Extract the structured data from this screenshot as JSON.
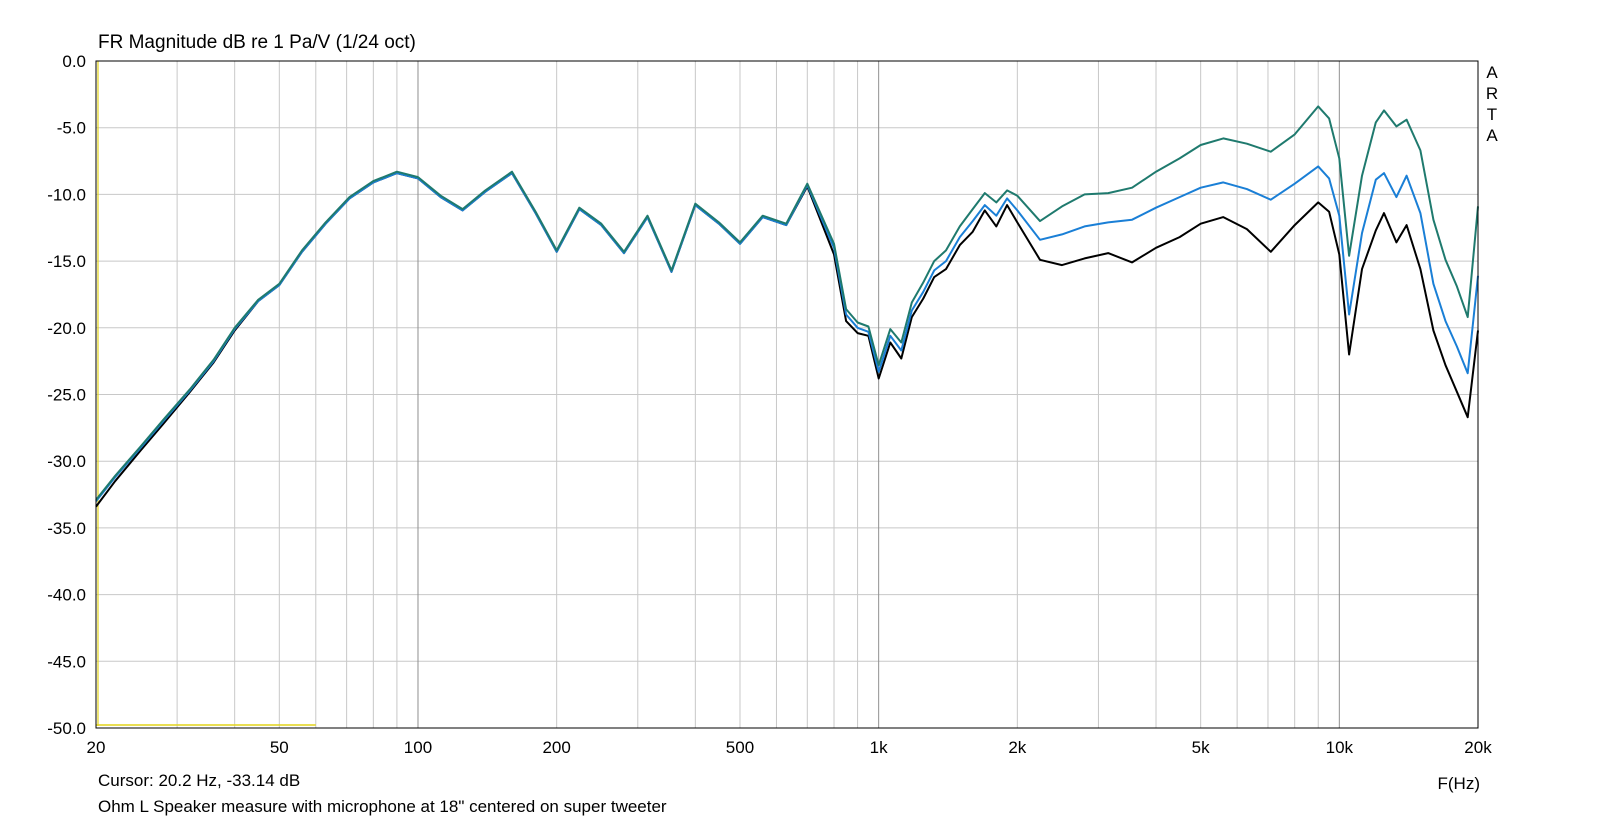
{
  "chart_data": {
    "type": "line",
    "title": "FR Magnitude dB re 1 Pa/V (1/24 oct)",
    "xlabel": "F(Hz)",
    "x_scale": "log",
    "xlim": [
      20,
      20000
    ],
    "ylim": [
      -50,
      0
    ],
    "grid": true,
    "watermark": "ARTA",
    "x_ticks": [
      {
        "value": 20,
        "label": "20"
      },
      {
        "value": 50,
        "label": "50"
      },
      {
        "value": 100,
        "label": "100"
      },
      {
        "value": 200,
        "label": "200"
      },
      {
        "value": 500,
        "label": "500"
      },
      {
        "value": 1000,
        "label": "1k"
      },
      {
        "value": 2000,
        "label": "2k"
      },
      {
        "value": 5000,
        "label": "5k"
      },
      {
        "value": 10000,
        "label": "10k"
      },
      {
        "value": 20000,
        "label": "20k"
      }
    ],
    "y_ticks": [
      {
        "value": 0,
        "label": "0.0"
      },
      {
        "value": -5,
        "label": "-5.0"
      },
      {
        "value": -10,
        "label": "-10.0"
      },
      {
        "value": -15,
        "label": "-15.0"
      },
      {
        "value": -20,
        "label": "-20.0"
      },
      {
        "value": -25,
        "label": "-25.0"
      },
      {
        "value": -30,
        "label": "-30.0"
      },
      {
        "value": -35,
        "label": "-35.0"
      },
      {
        "value": -40,
        "label": "-40.0"
      },
      {
        "value": -45,
        "label": "-45.0"
      },
      {
        "value": -50,
        "label": "-50.0"
      }
    ],
    "series": [
      {
        "color": "#000000",
        "x": [
          20,
          22,
          25,
          28,
          32,
          36,
          40,
          45,
          50,
          56,
          63,
          71,
          80,
          90,
          100,
          112,
          125,
          140,
          160,
          180,
          200,
          224,
          250,
          280,
          315,
          355,
          400,
          450,
          500,
          560,
          630,
          700,
          800,
          850,
          900,
          950,
          1000,
          1060,
          1120,
          1180,
          1250,
          1320,
          1400,
          1500,
          1600,
          1700,
          1800,
          1900,
          2000,
          2240,
          2500,
          2800,
          3150,
          3550,
          4000,
          4500,
          5000,
          5600,
          6300,
          7100,
          8000,
          9000,
          9500,
          10000,
          10500,
          11200,
          12000,
          12500,
          13300,
          14000,
          15000,
          16000,
          17000,
          18000,
          19000,
          20000
        ],
        "y": [
          -33.4,
          -31.5,
          -29.2,
          -27.2,
          -24.8,
          -22.6,
          -20.2,
          -18.0,
          -16.8,
          -14.3,
          -12.2,
          -10.3,
          -9.1,
          -8.4,
          -8.8,
          -10.2,
          -11.2,
          -9.8,
          -8.4,
          -11.4,
          -14.3,
          -11.1,
          -12.3,
          -14.4,
          -11.7,
          -15.8,
          -10.8,
          -12.2,
          -13.7,
          -11.7,
          -12.3,
          -9.4,
          -14.5,
          -19.5,
          -20.4,
          -20.6,
          -23.8,
          -21.1,
          -22.3,
          -19.2,
          -17.8,
          -16.2,
          -15.6,
          -13.8,
          -12.8,
          -11.2,
          -12.4,
          -10.8,
          -12.1,
          -14.9,
          -15.3,
          -14.8,
          -14.4,
          -15.1,
          -14.0,
          -13.2,
          -12.2,
          -11.7,
          -12.6,
          -14.3,
          -12.3,
          -10.6,
          -11.3,
          -14.5,
          -22.0,
          -15.6,
          -12.7,
          -11.4,
          -13.6,
          -12.3,
          -15.6,
          -20.2,
          -22.8,
          -24.8,
          -26.7,
          -20.2
        ]
      },
      {
        "color": "#1a7fd6",
        "x": [
          20,
          22,
          25,
          28,
          32,
          36,
          40,
          45,
          50,
          56,
          63,
          71,
          80,
          90,
          100,
          112,
          125,
          140,
          160,
          180,
          200,
          224,
          250,
          280,
          315,
          355,
          400,
          450,
          500,
          560,
          630,
          700,
          800,
          850,
          900,
          950,
          1000,
          1060,
          1120,
          1180,
          1250,
          1320,
          1400,
          1500,
          1600,
          1700,
          1800,
          1900,
          2000,
          2240,
          2500,
          2800,
          3150,
          3550,
          4000,
          4500,
          5000,
          5600,
          6300,
          7100,
          8000,
          9000,
          9500,
          10000,
          10500,
          11200,
          12000,
          12500,
          13300,
          14000,
          15000,
          16000,
          17000,
          18000,
          19000,
          20000
        ],
        "y": [
          -33.0,
          -31.2,
          -29.0,
          -27.0,
          -24.7,
          -22.5,
          -20.1,
          -18.0,
          -16.8,
          -14.3,
          -12.2,
          -10.3,
          -9.1,
          -8.4,
          -8.8,
          -10.2,
          -11.2,
          -9.8,
          -8.4,
          -11.4,
          -14.3,
          -11.1,
          -12.3,
          -14.4,
          -11.7,
          -15.8,
          -10.8,
          -12.2,
          -13.7,
          -11.7,
          -12.3,
          -9.3,
          -14.0,
          -19.0,
          -20.0,
          -20.3,
          -23.3,
          -20.6,
          -21.7,
          -18.7,
          -17.3,
          -15.7,
          -15.0,
          -13.2,
          -12.0,
          -10.8,
          -11.6,
          -10.3,
          -11.2,
          -13.4,
          -13.0,
          -12.4,
          -12.1,
          -11.9,
          -11.0,
          -10.2,
          -9.5,
          -9.1,
          -9.6,
          -10.4,
          -9.2,
          -7.9,
          -8.8,
          -11.6,
          -19.0,
          -12.9,
          -8.9,
          -8.4,
          -10.2,
          -8.6,
          -11.4,
          -16.7,
          -19.5,
          -21.4,
          -23.4,
          -16.1
        ]
      },
      {
        "color": "#1f7a6e",
        "x": [
          20,
          22,
          25,
          28,
          32,
          36,
          40,
          45,
          50,
          56,
          63,
          71,
          80,
          90,
          100,
          112,
          125,
          140,
          160,
          180,
          200,
          224,
          250,
          280,
          315,
          355,
          400,
          450,
          500,
          560,
          630,
          700,
          800,
          850,
          900,
          950,
          1000,
          1060,
          1120,
          1180,
          1250,
          1320,
          1400,
          1500,
          1600,
          1700,
          1800,
          1900,
          2000,
          2240,
          2500,
          2800,
          3150,
          3550,
          4000,
          4500,
          5000,
          5600,
          6300,
          7100,
          8000,
          9000,
          9500,
          10000,
          10500,
          11200,
          12000,
          12500,
          13300,
          14000,
          15000,
          16000,
          17000,
          18000,
          19000,
          20000
        ],
        "y": [
          -32.9,
          -31.1,
          -28.9,
          -26.9,
          -24.6,
          -22.4,
          -20.0,
          -17.9,
          -16.7,
          -14.2,
          -12.1,
          -10.2,
          -9.0,
          -8.3,
          -8.7,
          -10.1,
          -11.1,
          -9.7,
          -8.3,
          -11.3,
          -14.2,
          -11.0,
          -12.2,
          -14.3,
          -11.6,
          -15.7,
          -10.7,
          -12.1,
          -13.6,
          -11.6,
          -12.2,
          -9.2,
          -13.7,
          -18.6,
          -19.6,
          -19.9,
          -22.8,
          -20.1,
          -21.1,
          -18.1,
          -16.6,
          -15.0,
          -14.2,
          -12.4,
          -11.1,
          -9.9,
          -10.6,
          -9.7,
          -10.1,
          -12.0,
          -10.9,
          -10.0,
          -9.9,
          -9.5,
          -8.3,
          -7.3,
          -6.3,
          -5.8,
          -6.2,
          -6.8,
          -5.5,
          -3.4,
          -4.3,
          -7.3,
          -14.6,
          -8.6,
          -4.6,
          -3.7,
          -4.9,
          -4.4,
          -6.7,
          -11.9,
          -14.9,
          -16.9,
          -19.2,
          -10.9
        ]
      }
    ]
  },
  "footer": {
    "cursor": "Cursor: 20.2 Hz, -33.14 dB",
    "caption": "Ohm L  Speaker measure with microphone at 18\" centered on super tweeter"
  },
  "cursor_marker": {
    "freq": 20.2,
    "db": -33.14,
    "color": "#e2d31a"
  },
  "colors": {
    "grid_minor": "#c8c8c8",
    "grid_major": "#909090",
    "frame": "#000000"
  }
}
